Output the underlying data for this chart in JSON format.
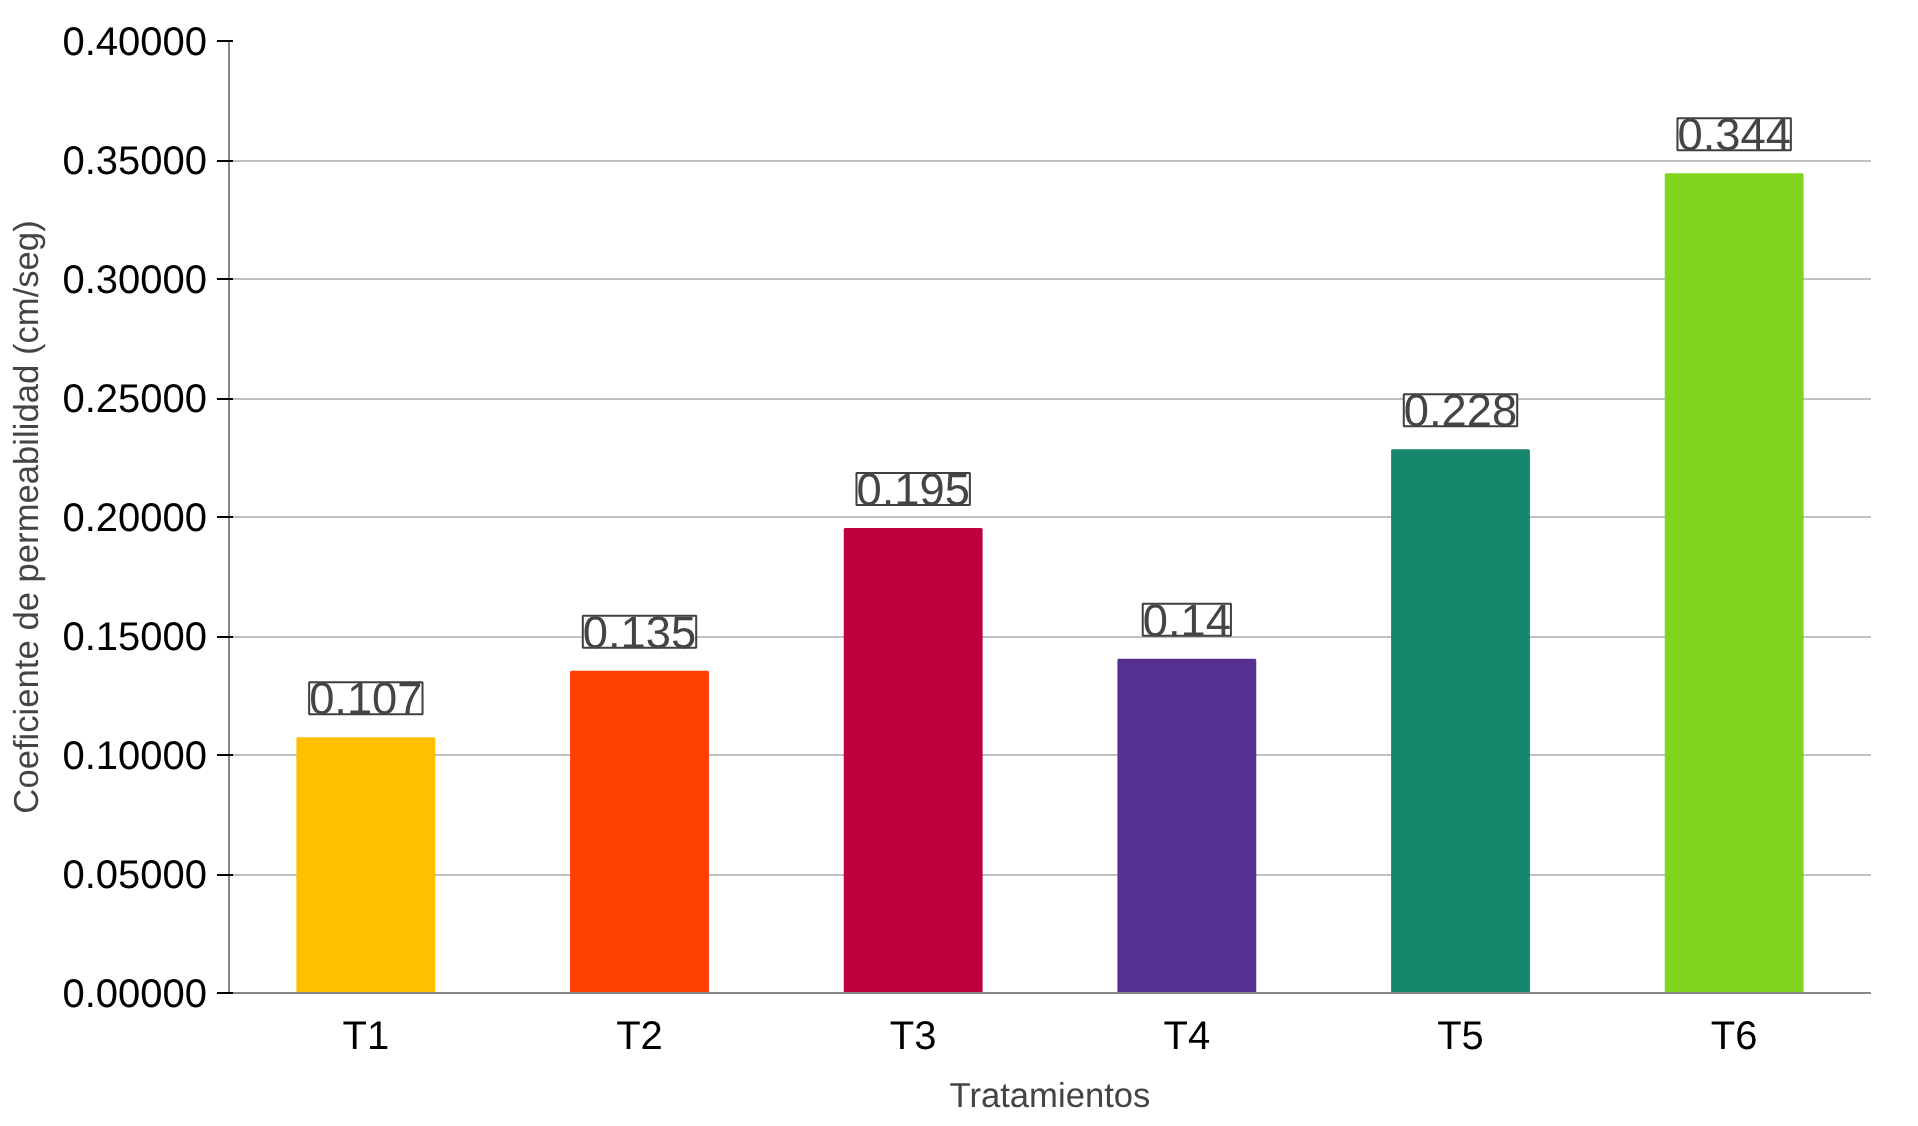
{
  "chart_data": {
    "type": "bar",
    "xlabel": "Tratamientos",
    "ylabel": "Coeficiente de permeabilidad (cm/seg)",
    "categories": [
      "T1",
      "T2",
      "T3",
      "T4",
      "T5",
      "T6"
    ],
    "values": [
      0.107,
      0.135,
      0.195,
      0.14,
      0.228,
      0.344
    ],
    "colors": [
      "#ffc000",
      "#ff4000",
      "#c0003c",
      "#553090",
      "#16876c",
      "#80d41e"
    ],
    "ylim": [
      0,
      0.4
    ],
    "yticks": [
      {
        "value": 0,
        "label": "0.00000"
      },
      {
        "value": 0.05,
        "label": "0.05000"
      },
      {
        "value": 0.1,
        "label": "0.10000"
      },
      {
        "value": 0.15,
        "label": "0.15000"
      },
      {
        "value": 0.2,
        "label": "0.20000"
      },
      {
        "value": 0.25,
        "label": "0.25000"
      },
      {
        "value": 0.3,
        "label": "0.30000"
      },
      {
        "value": 0.35,
        "label": "0.35000"
      },
      {
        "value": 0.4,
        "label": "0.40000"
      }
    ],
    "grid": "y",
    "data_labels": true
  }
}
